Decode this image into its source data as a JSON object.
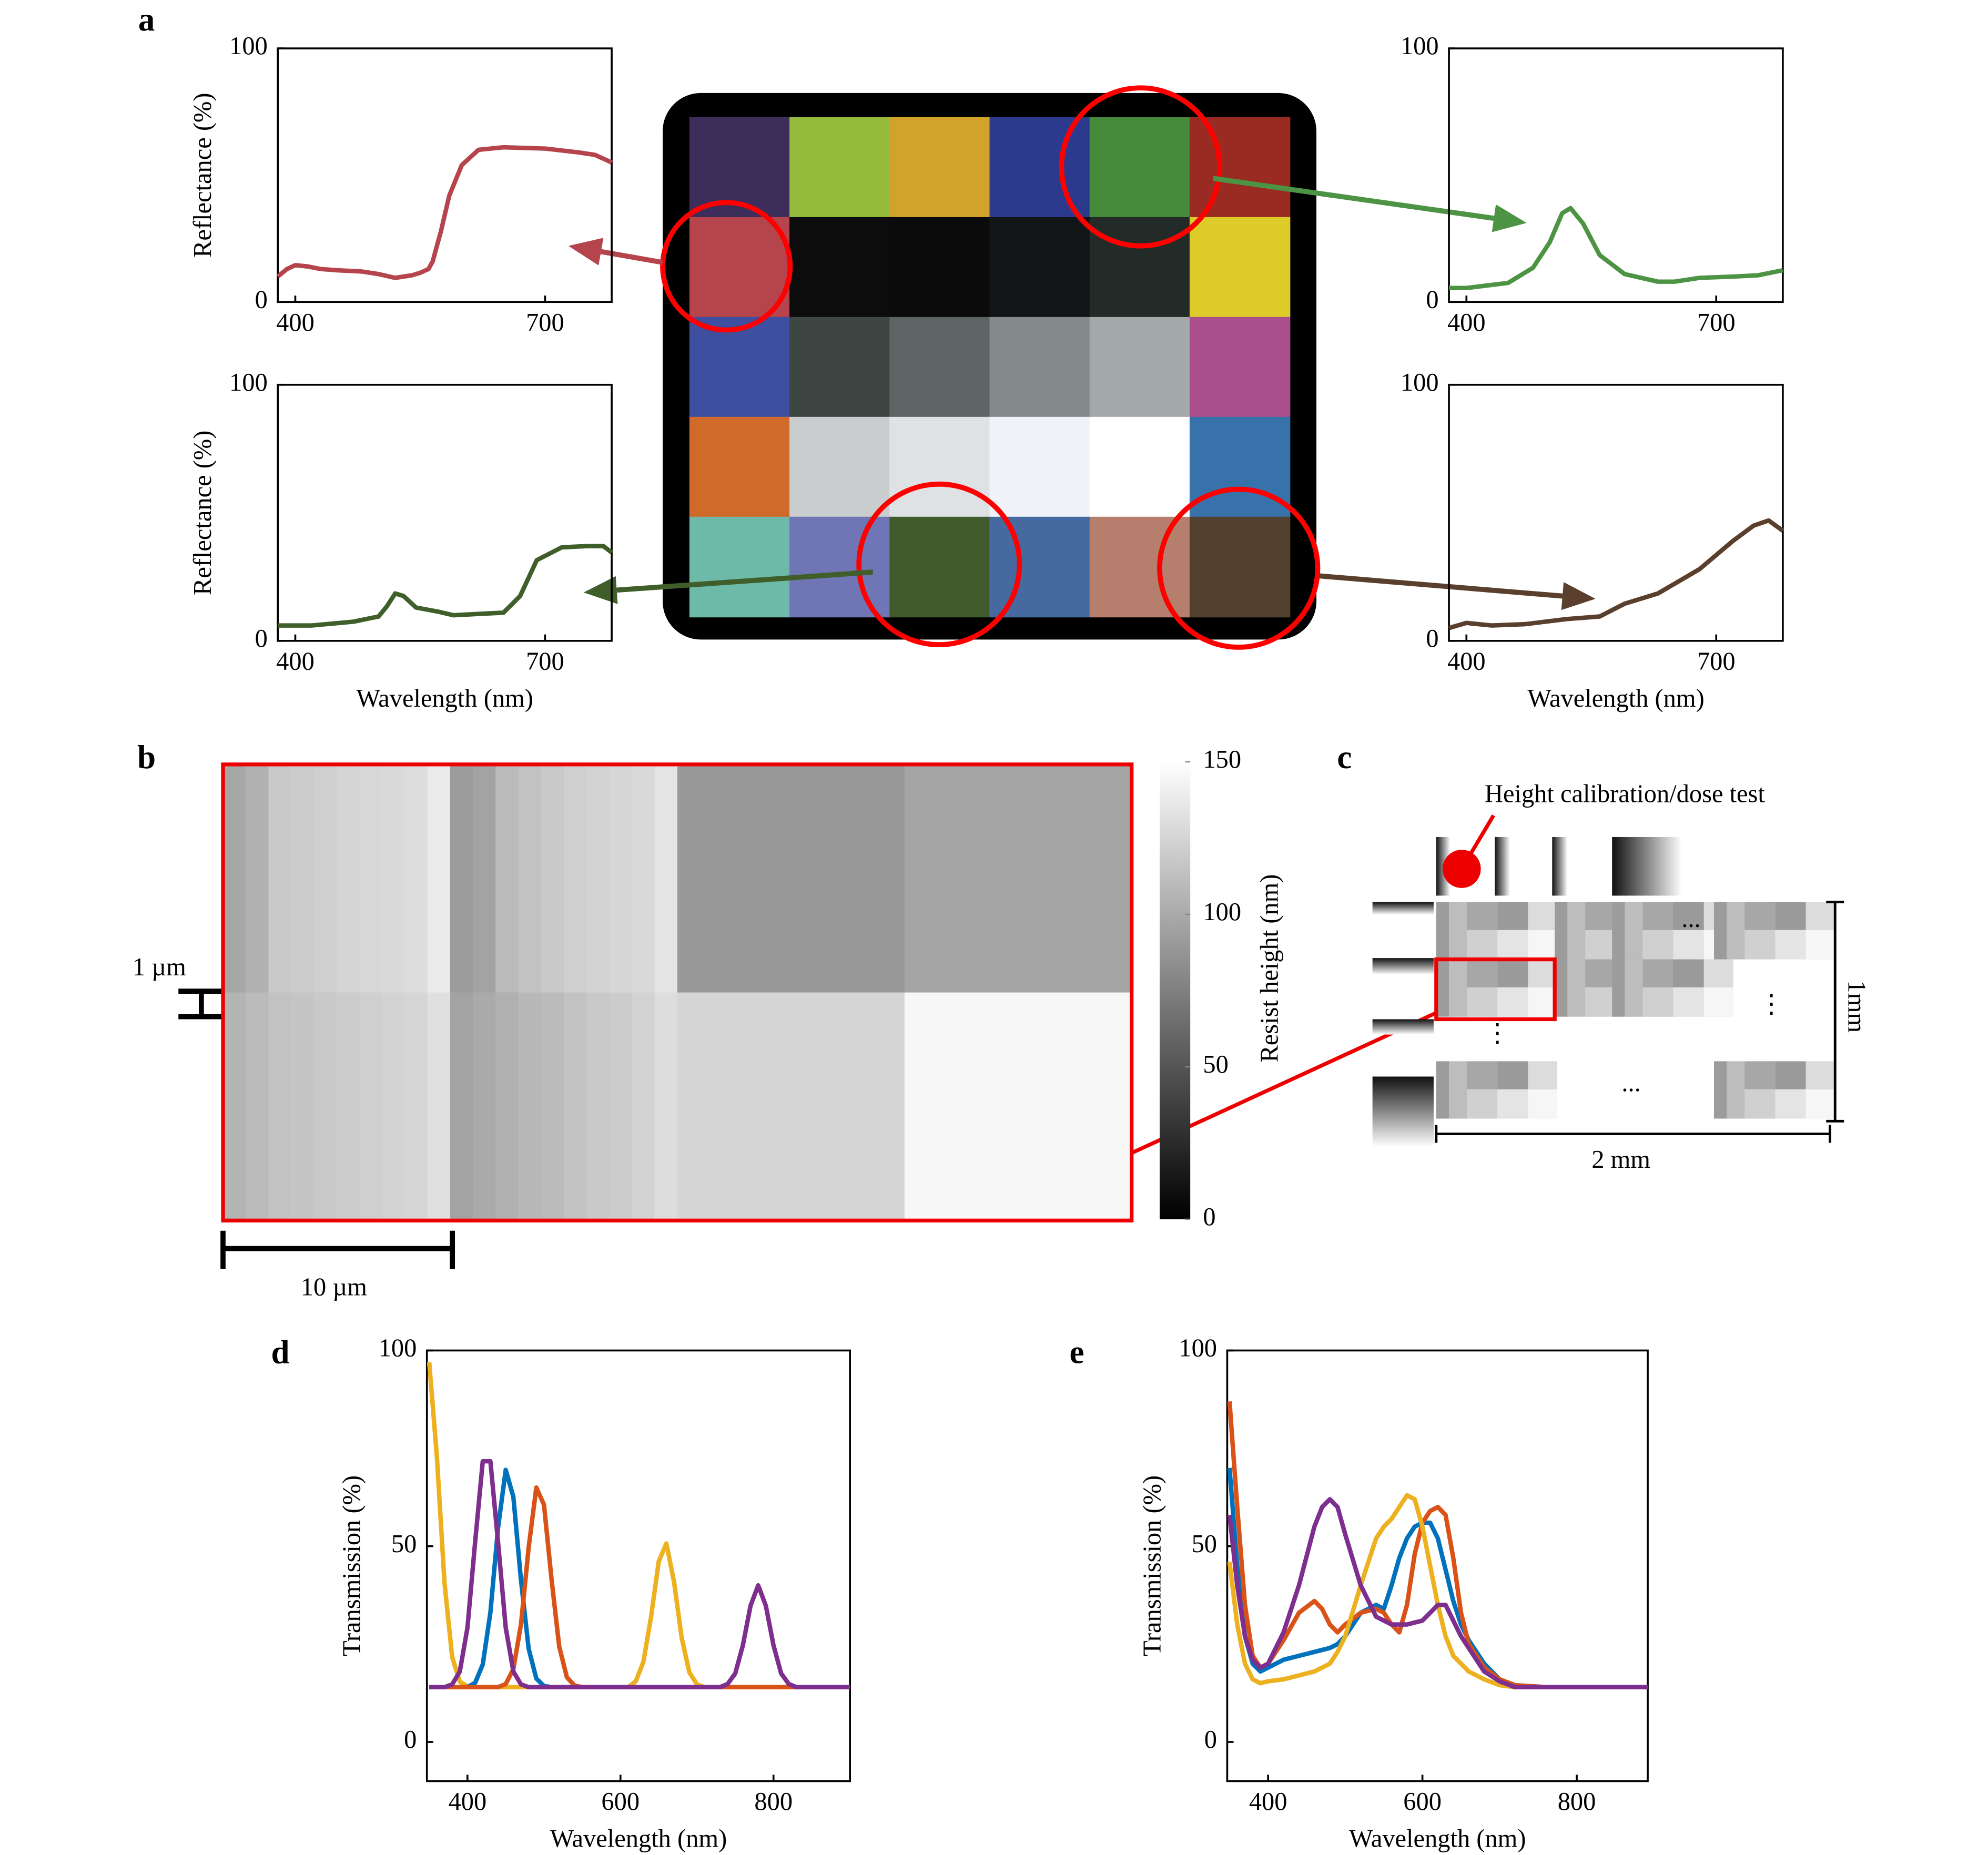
{
  "panel_labels": [
    "a",
    "b",
    "c",
    "d",
    "e"
  ],
  "annotations": {
    "scale_bar_short": "1 µm",
    "scale_bar_long": "10 µm",
    "inset_title": "Height calibration/dose test",
    "height_dim": "1mm",
    "width_dim": "2 mm",
    "ellipsis": "...",
    "vertical_ellipsis": "⋮"
  },
  "chart_data": [
    {
      "type": "line",
      "ylabel": "Reflectance (%)",
      "x": [
        379,
        390,
        400,
        415,
        430,
        450,
        480,
        500,
        520,
        540,
        550,
        560,
        565,
        575,
        585,
        600,
        620,
        650,
        700,
        740,
        760,
        780
      ],
      "series": [
        {
          "color": "#b5444c",
          "values": [
            10,
            13,
            14.5,
            14,
            13,
            12.5,
            12,
            11,
            9.5,
            10.5,
            11.5,
            13,
            16,
            28,
            42,
            54,
            60,
            61,
            60.5,
            59,
            58,
            55
          ]
        }
      ],
      "xlim": [
        379,
        780
      ],
      "ylim": [
        0,
        100
      ],
      "xticks": [
        400,
        700
      ],
      "yticks": [
        0,
        100
      ]
    },
    {
      "type": "line",
      "x": [
        379,
        400,
        450,
        480,
        500,
        515,
        525,
        540,
        560,
        590,
        630,
        650,
        680,
        720,
        750,
        780
      ],
      "series": [
        {
          "color": "#4c9444",
          "values": [
            5.5,
            5.5,
            7.5,
            13.5,
            23.5,
            35,
            37,
            31,
            18.5,
            11,
            8,
            8,
            9.5,
            10,
            10.5,
            12.5
          ]
        }
      ],
      "xlim": [
        379,
        780
      ],
      "ylim": [
        0,
        100
      ],
      "xticks": [
        400,
        700
      ],
      "yticks": [
        0,
        100
      ]
    },
    {
      "type": "line",
      "ylabel": "Reflectance (%)",
      "xlabel": "Wavelength (nm)",
      "x": [
        379,
        420,
        470,
        500,
        510,
        520,
        530,
        545,
        570,
        590,
        620,
        650,
        670,
        690,
        720,
        750,
        770,
        780
      ],
      "series": [
        {
          "color": "#3f5e2a",
          "values": [
            6,
            6,
            7.5,
            9.5,
            13.5,
            18.5,
            17.5,
            13,
            11.5,
            10,
            10.5,
            11,
            17.5,
            31.5,
            36.5,
            37,
            37,
            34.5
          ]
        }
      ],
      "xlim": [
        379,
        780
      ],
      "ylim": [
        0,
        100
      ],
      "xticks": [
        400,
        700
      ],
      "yticks": [
        0,
        100
      ]
    },
    {
      "type": "line",
      "xlabel": "Wavelength (nm)",
      "x": [
        379,
        400,
        430,
        470,
        520,
        560,
        590,
        630,
        680,
        720,
        745,
        763,
        780
      ],
      "series": [
        {
          "color": "#5a3f2c",
          "values": [
            5,
            7,
            6,
            6.5,
            8.5,
            9.5,
            14.5,
            18.5,
            28,
            39,
            45,
            47,
            43
          ]
        }
      ],
      "xlim": [
        379,
        780
      ],
      "ylim": [
        0,
        100
      ],
      "xticks": [
        400,
        700
      ],
      "yticks": [
        0,
        100
      ]
    },
    {
      "type": "line",
      "ylabel": "Transmission (%)",
      "xlabel": "Wavelength (nm)",
      "x": [
        350,
        360,
        370,
        380,
        390,
        400,
        410,
        420,
        430,
        440,
        450,
        460,
        470,
        480,
        490,
        500,
        510,
        520,
        530,
        540,
        550,
        560,
        570,
        580,
        590,
        600,
        610,
        620,
        630,
        640,
        650,
        660,
        670,
        680,
        690,
        700,
        710,
        720,
        730,
        740,
        750,
        760,
        770,
        780,
        790,
        800,
        810,
        820,
        830,
        840,
        850,
        860,
        870,
        880,
        890,
        900
      ],
      "series": [
        {
          "color": "#edb120",
          "values": [
            97,
            73,
            40.6,
            21.7,
            15.4,
            14.2,
            14,
            14,
            14,
            14,
            14,
            14,
            14,
            14,
            14,
            14,
            14,
            14,
            14,
            14,
            14,
            14,
            14,
            14,
            14,
            14,
            14,
            15.5,
            20.5,
            32,
            46.1,
            50.7,
            40.9,
            26.6,
            17.8,
            14.7,
            14,
            14,
            14,
            14,
            14,
            14,
            14,
            14,
            14,
            14,
            14,
            14,
            14,
            14,
            14,
            14,
            14,
            14,
            14,
            14
          ]
        },
        {
          "color": "#0072bd",
          "values": [
            14,
            14,
            14,
            14,
            14,
            14,
            15.1,
            19.8,
            33.1,
            54.7,
            69.5,
            62.6,
            41.3,
            23.8,
            16.2,
            14.3,
            14,
            14,
            14,
            14,
            14,
            14,
            14,
            14,
            14,
            14,
            14,
            14,
            14,
            14,
            14,
            14,
            14,
            14,
            14,
            14,
            14,
            14,
            14,
            14,
            14,
            14,
            14,
            14,
            14,
            14,
            14,
            14,
            14,
            14,
            14,
            14,
            14,
            14,
            14,
            14
          ]
        },
        {
          "color": "#d95319",
          "values": [
            14,
            14,
            14,
            14,
            14,
            14,
            14,
            14,
            14,
            14,
            14.8,
            18.6,
            30.1,
            49.7,
            65,
            60.6,
            41.4,
            24.3,
            16.5,
            14.4,
            14,
            14,
            14,
            14,
            14,
            14,
            14,
            14,
            14,
            14,
            14,
            14,
            14,
            14,
            14,
            14,
            14,
            14,
            14,
            14,
            14,
            14,
            14,
            14,
            14,
            14,
            14,
            14,
            14,
            14,
            14,
            14,
            14,
            14,
            14,
            14
          ]
        },
        {
          "color": "#7e2f8e",
          "values": [
            14,
            14,
            14,
            14.7,
            18,
            29.2,
            51,
            71.7,
            71.7,
            51,
            29.2,
            18,
            14.7,
            14,
            14,
            14,
            14,
            14,
            14,
            14,
            14,
            14,
            14,
            14,
            14,
            14,
            14,
            14,
            14,
            14,
            14,
            14,
            14,
            14,
            14,
            14,
            14,
            14,
            14,
            14.8,
            17.5,
            24.7,
            34.8,
            40,
            34.8,
            24.7,
            17.5,
            14.8,
            14,
            14,
            14,
            14,
            14,
            14,
            14,
            14
          ]
        }
      ],
      "xlim": [
        347,
        900
      ],
      "ylim": [
        -10,
        100
      ],
      "xticks": [
        400,
        600,
        800
      ],
      "yticks": [
        0,
        50,
        100
      ]
    },
    {
      "type": "line",
      "ylabel": "Transmission (%)",
      "xlabel": "Wavelength (nm)",
      "x": [
        350,
        360,
        370,
        380,
        390,
        400,
        420,
        440,
        460,
        470,
        480,
        490,
        500,
        520,
        540,
        550,
        560,
        570,
        580,
        590,
        600,
        610,
        620,
        630,
        640,
        650,
        660,
        680,
        700,
        720,
        760,
        820,
        892
      ],
      "series": [
        {
          "color": "#0072bd",
          "values": [
            70,
            45,
            27,
            20,
            18,
            19,
            21,
            22,
            23,
            23.5,
            24,
            25,
            27,
            33,
            35,
            34,
            40,
            47,
            52,
            55,
            56,
            56,
            52,
            44,
            36,
            30,
            26,
            20,
            16,
            14.5,
            14,
            14,
            14
          ]
        },
        {
          "color": "#d95319",
          "values": [
            87,
            60,
            35,
            22,
            19,
            20,
            26,
            33,
            36,
            34,
            30,
            28,
            30,
            33,
            34,
            33,
            30,
            28,
            35,
            48,
            56,
            59,
            60,
            58,
            47,
            33,
            25,
            19,
            16,
            14.5,
            14,
            14,
            14
          ]
        },
        {
          "color": "#edb120",
          "values": [
            46,
            30,
            20,
            16,
            15,
            15.5,
            16,
            17,
            18,
            19,
            20,
            23,
            27,
            40,
            52,
            55,
            57,
            60,
            63,
            62,
            55,
            45,
            35,
            27,
            22,
            20,
            18,
            16,
            14.5,
            14,
            14,
            14,
            14
          ]
        },
        {
          "color": "#7e2f8e",
          "values": [
            58,
            40,
            27,
            21,
            19,
            20,
            28,
            40,
            55,
            60,
            62,
            60,
            53,
            40,
            32,
            31,
            30,
            30,
            30,
            30.5,
            31,
            33,
            35,
            35,
            31,
            27,
            24,
            18,
            15.5,
            14,
            14,
            14,
            14
          ]
        }
      ],
      "xlim": [
        347,
        892
      ],
      "ylim": [
        -10,
        100
      ],
      "xticks": [
        400,
        600,
        800
      ],
      "yticks": [
        0,
        50,
        100
      ]
    },
    {
      "type": "heatmap",
      "colorbar_label": "Resist height (nm)",
      "values": [
        [
          98,
          104,
          118,
          120,
          122,
          125,
          127,
          128,
          130,
          138,
          92,
          96,
          110,
          114,
          118,
          122,
          124,
          126,
          128,
          134,
          90,
          90,
          90,
          90,
          90,
          90,
          90,
          90,
          90,
          90,
          97,
          97,
          97,
          97,
          97,
          97,
          97,
          97,
          97,
          97
        ],
        [
          106,
          110,
          114,
          116,
          118,
          120,
          122,
          124,
          126,
          132,
          96,
          100,
          104,
          108,
          110,
          114,
          118,
          120,
          124,
          130,
          125,
          125,
          125,
          125,
          125,
          125,
          125,
          125,
          125,
          125,
          145,
          145,
          145,
          145,
          145,
          145,
          145,
          145,
          145,
          145
        ]
      ],
      "clim": [
        0,
        150
      ],
      "cticks": [
        0,
        50,
        100,
        150
      ]
    }
  ]
}
